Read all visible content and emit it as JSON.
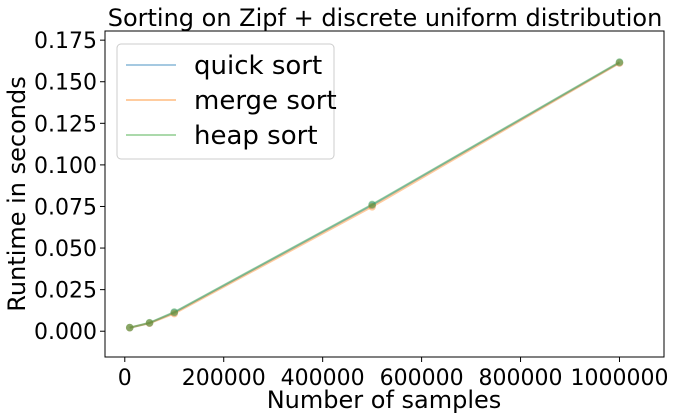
{
  "chart_data": {
    "type": "line",
    "title": "Sorting on Zipf + discrete uniform distribution",
    "xlabel": "Number of samples",
    "ylabel": "Runtime in seconds",
    "x": [
      10000,
      50000,
      100000,
      500000,
      1000000
    ],
    "xlim": [
      -40000,
      1090000
    ],
    "ylim": [
      -0.0155,
      0.1805
    ],
    "xticks": [
      0,
      200000,
      400000,
      600000,
      800000,
      1000000
    ],
    "xtick_labels": [
      "0",
      "200000",
      "400000",
      "600000",
      "800000",
      "1000000"
    ],
    "yticks": [
      0.0,
      0.025,
      0.05,
      0.075,
      0.1,
      0.125,
      0.15,
      0.175
    ],
    "ytick_labels": [
      "0.000",
      "0.025",
      "0.050",
      "0.075",
      "0.100",
      "0.125",
      "0.150",
      "0.175"
    ],
    "grid": false,
    "legend_position": "top-left",
    "series": [
      {
        "name": "quick sort",
        "color": "#1f77b4",
        "values": [
          0.0021,
          0.0049,
          0.0112,
          0.0758,
          0.1615
        ]
      },
      {
        "name": "merge sort",
        "color": "#ff7f0e",
        "values": [
          0.0021,
          0.0048,
          0.0106,
          0.0748,
          0.1612
        ]
      },
      {
        "name": "heap sort",
        "color": "#2ca02c",
        "values": [
          0.0022,
          0.0051,
          0.0115,
          0.0762,
          0.1618
        ]
      }
    ],
    "marker_color": "#6f9a46"
  }
}
